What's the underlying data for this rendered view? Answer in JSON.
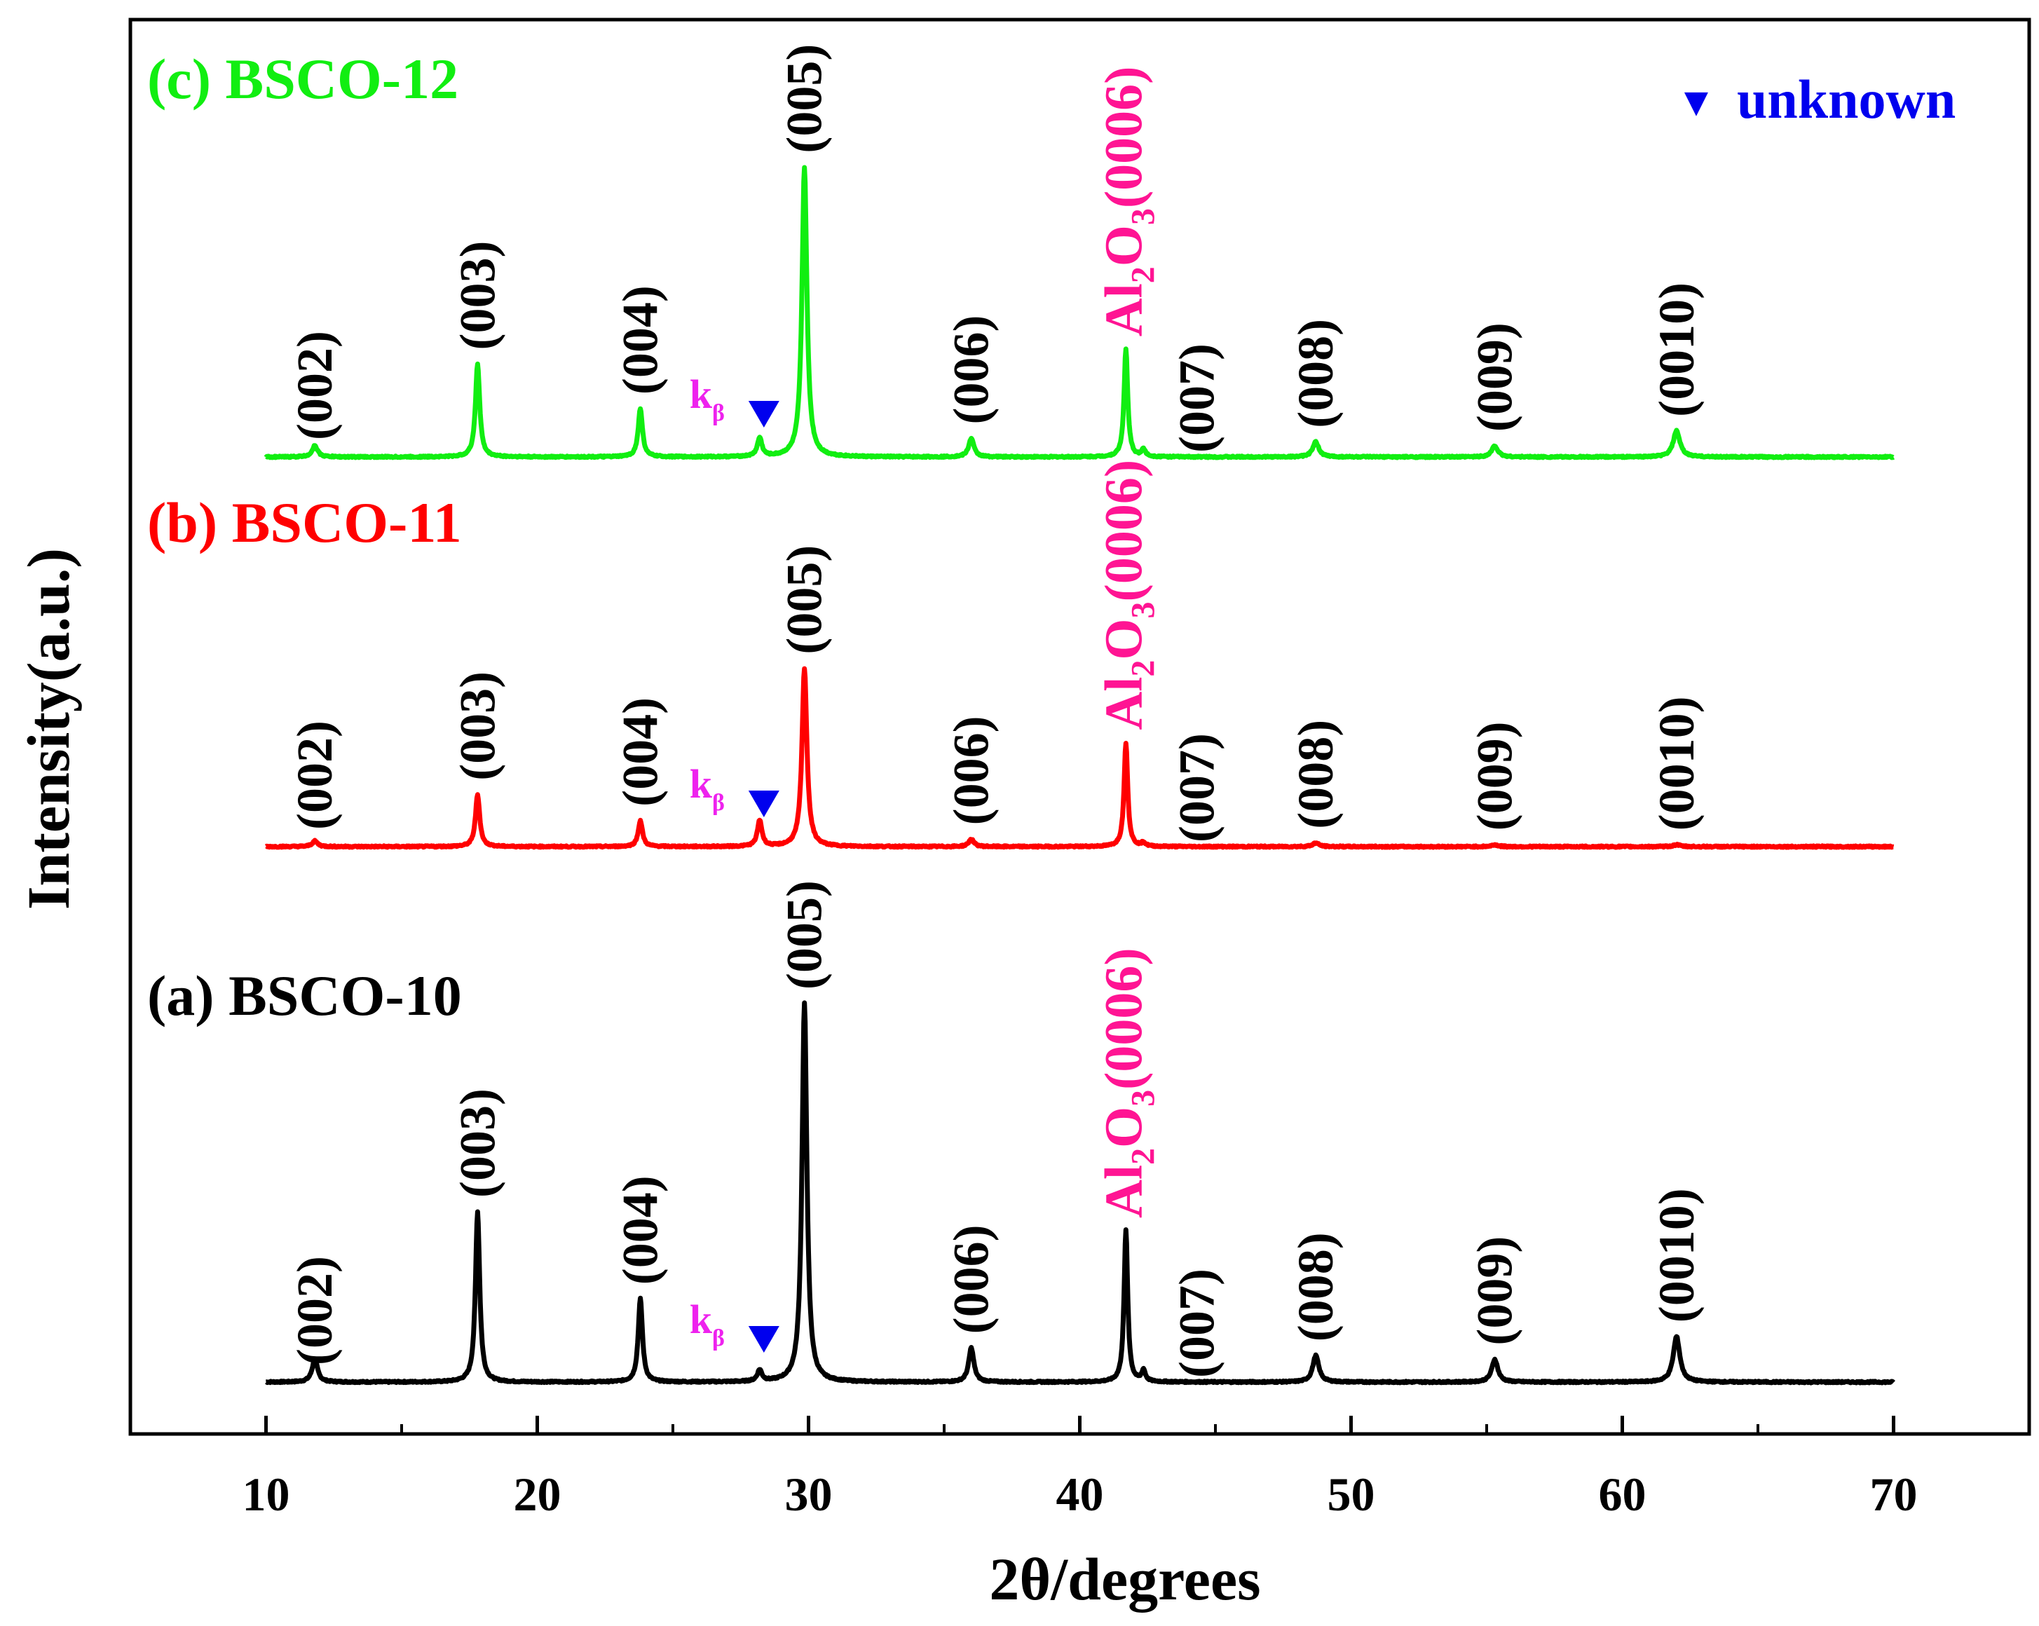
{
  "chart_data": {
    "type": "line",
    "xlabel": "2θ/degrees",
    "ylabel": "Intensity(a.u.)",
    "xlim": [
      5,
      75
    ],
    "xticks": [
      10,
      20,
      30,
      40,
      50,
      60,
      70
    ],
    "xticks_minor": [
      15,
      25,
      35,
      45,
      55,
      65
    ],
    "x_range": [
      10,
      70
    ],
    "legend": {
      "marker": "▼",
      "label": "unknown",
      "color": "#0000ee",
      "position": "top-right"
    },
    "series": [
      {
        "id": "a",
        "name": "(a) BSCO-10",
        "color": "#000000",
        "baseline": 0,
        "peaks": [
          {
            "x": 11.8,
            "h": 0.06,
            "w": 0.18,
            "label": "(002)"
          },
          {
            "x": 17.8,
            "h": 0.45,
            "w": 0.14,
            "label": "(003)"
          },
          {
            "x": 23.8,
            "h": 0.22,
            "w": 0.14,
            "label": "(004)"
          },
          {
            "x": 28.2,
            "h": 0.03,
            "w": 0.15,
            "label": "kβ",
            "marker": true
          },
          {
            "x": 29.85,
            "h": 1.0,
            "w": 0.16,
            "label": "(005)"
          },
          {
            "x": 36.0,
            "h": 0.09,
            "w": 0.17,
            "label": "(006)"
          },
          {
            "x": 41.7,
            "h": 0.4,
            "w": 0.12,
            "label": "Al2O3(0006)"
          },
          {
            "x": 42.35,
            "h": 0.03,
            "w": 0.12,
            "label": "(007)"
          },
          {
            "x": 48.7,
            "h": 0.07,
            "w": 0.2,
            "label": "(008)"
          },
          {
            "x": 55.3,
            "h": 0.06,
            "w": 0.2,
            "label": "(009)"
          },
          {
            "x": 62.0,
            "h": 0.12,
            "w": 0.22,
            "label": "(0010)"
          }
        ]
      },
      {
        "id": "b",
        "name": "(b) BSCO-11",
        "color": "#ff0000",
        "baseline": 1.27,
        "peaks": [
          {
            "x": 11.8,
            "h": 0.015,
            "w": 0.18,
            "label": "(002)"
          },
          {
            "x": 17.8,
            "h": 0.14,
            "w": 0.14,
            "label": "(003)"
          },
          {
            "x": 23.8,
            "h": 0.07,
            "w": 0.14,
            "label": "(004)"
          },
          {
            "x": 28.2,
            "h": 0.07,
            "w": 0.15,
            "label": "kβ",
            "marker": true
          },
          {
            "x": 29.85,
            "h": 0.48,
            "w": 0.16,
            "label": "(005)"
          },
          {
            "x": 36.0,
            "h": 0.02,
            "w": 0.17,
            "label": "(006)"
          },
          {
            "x": 41.7,
            "h": 0.28,
            "w": 0.12,
            "label": "Al2O3(0006)"
          },
          {
            "x": 42.35,
            "h": 0.01,
            "w": 0.12,
            "label": "(007)"
          },
          {
            "x": 48.7,
            "h": 0.01,
            "w": 0.2,
            "label": "(008)"
          },
          {
            "x": 55.3,
            "h": 0.005,
            "w": 0.2,
            "label": "(009)"
          },
          {
            "x": 62.0,
            "h": 0.005,
            "w": 0.22,
            "label": "(0010)"
          }
        ]
      },
      {
        "id": "c",
        "name": "(c) BSCO-12",
        "color": "#11ee11",
        "baseline": 2.53,
        "peaks": [
          {
            "x": 11.8,
            "h": 0.03,
            "w": 0.18,
            "label": "(002)"
          },
          {
            "x": 17.8,
            "h": 0.25,
            "w": 0.14,
            "label": "(003)"
          },
          {
            "x": 23.8,
            "h": 0.13,
            "w": 0.14,
            "label": "(004)"
          },
          {
            "x": 28.2,
            "h": 0.05,
            "w": 0.15,
            "label": "kβ",
            "marker": true
          },
          {
            "x": 29.85,
            "h": 0.78,
            "w": 0.16,
            "label": "(005)"
          },
          {
            "x": 36.0,
            "h": 0.05,
            "w": 0.17,
            "label": "(006)"
          },
          {
            "x": 41.7,
            "h": 0.29,
            "w": 0.12,
            "label": "Al2O3(0006)"
          },
          {
            "x": 42.35,
            "h": 0.02,
            "w": 0.12,
            "label": "(007)"
          },
          {
            "x": 48.7,
            "h": 0.04,
            "w": 0.2,
            "label": "(008)"
          },
          {
            "x": 55.3,
            "h": 0.03,
            "w": 0.2,
            "label": "(009)"
          },
          {
            "x": 62.0,
            "h": 0.07,
            "w": 0.22,
            "label": "(0010)"
          }
        ]
      }
    ],
    "label_colors": {
      "miller": "#000000",
      "substrate": "#ff1493",
      "kbeta": "#ee22ee",
      "marker": "#0000ee"
    }
  },
  "text": {
    "substrate_main": "Al",
    "substrate_sub1": "2",
    "substrate_mid": "O",
    "substrate_sub2": "3",
    "substrate_tail": "(0006)",
    "kbeta_main": "k",
    "kbeta_sub": "β"
  }
}
